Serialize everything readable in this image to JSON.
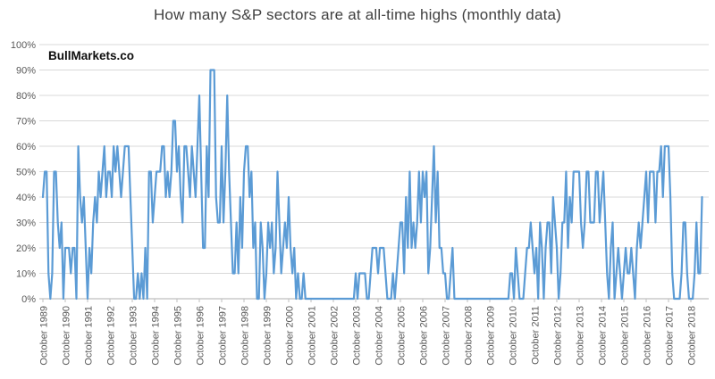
{
  "title": "How many S&P sectors are at all-time highs (monthly data)",
  "watermark": "BullMarkets.co",
  "chart_data": {
    "type": "line",
    "title": "How many S&P sectors are at all-time highs (monthly data)",
    "xlabel": "",
    "ylabel": "",
    "y_unit": "%",
    "ylim": [
      0,
      100
    ],
    "y_tick_step": 10,
    "y_tick_labels": [
      "0%",
      "10%",
      "20%",
      "30%",
      "40%",
      "50%",
      "60%",
      "70%",
      "80%",
      "90%",
      "100%"
    ],
    "x_tick_labels": [
      "October 1989",
      "October 1990",
      "October 1991",
      "October 1992",
      "October 1993",
      "October 1994",
      "October 1995",
      "October 1996",
      "October 1997",
      "October 1998",
      "October 1999",
      "October 2000",
      "October 2001",
      "October 2002",
      "October 2003",
      "October 2004",
      "October 2005",
      "October 2006",
      "October 2007",
      "October 2008",
      "October 2009",
      "October 2010",
      "October 2011",
      "October 2012",
      "October 2013",
      "October 2014",
      "October 2015",
      "October 2016",
      "October 2017",
      "October 2018"
    ],
    "x_label_interval_months": 12,
    "frequency": "monthly",
    "series_start": "October 1989",
    "grid": true,
    "legend_position": "none",
    "line_color": "#5B9BD5",
    "grid_color": "#D9D9D9",
    "axis_color": "#BFBFBF",
    "tick_text_color": "#595959",
    "title_color": "#404040",
    "values": [
      40,
      50,
      50,
      10,
      0,
      10,
      50,
      50,
      30,
      20,
      30,
      0,
      20,
      20,
      20,
      10,
      20,
      20,
      0,
      60,
      40,
      30,
      40,
      20,
      0,
      20,
      10,
      30,
      40,
      30,
      50,
      40,
      50,
      60,
      40,
      50,
      50,
      40,
      60,
      50,
      60,
      50,
      40,
      50,
      60,
      60,
      60,
      40,
      20,
      0,
      0,
      10,
      0,
      10,
      0,
      20,
      0,
      50,
      50,
      30,
      40,
      50,
      50,
      50,
      60,
      60,
      40,
      50,
      40,
      50,
      70,
      70,
      50,
      60,
      40,
      30,
      60,
      60,
      50,
      40,
      60,
      50,
      40,
      60,
      80,
      50,
      20,
      20,
      60,
      40,
      90,
      90,
      90,
      40,
      30,
      30,
      60,
      30,
      50,
      80,
      50,
      30,
      10,
      10,
      30,
      10,
      40,
      20,
      50,
      60,
      60,
      40,
      50,
      20,
      30,
      0,
      0,
      30,
      20,
      0,
      10,
      30,
      20,
      30,
      10,
      20,
      50,
      30,
      10,
      20,
      30,
      20,
      40,
      20,
      10,
      20,
      0,
      10,
      0,
      0,
      10,
      0,
      0,
      0,
      0,
      0,
      0,
      0,
      0,
      0,
      0,
      0,
      0,
      0,
      0,
      0,
      0,
      0,
      0,
      0,
      0,
      0,
      0,
      0,
      0,
      0,
      0,
      0,
      10,
      0,
      10,
      10,
      10,
      10,
      0,
      0,
      10,
      20,
      20,
      20,
      10,
      20,
      20,
      20,
      10,
      0,
      0,
      0,
      10,
      0,
      10,
      20,
      30,
      30,
      10,
      40,
      20,
      50,
      20,
      30,
      20,
      30,
      50,
      30,
      50,
      40,
      50,
      10,
      20,
      40,
      60,
      30,
      50,
      20,
      20,
      10,
      10,
      0,
      0,
      10,
      20,
      0,
      0,
      0,
      0,
      0,
      0,
      0,
      0,
      0,
      0,
      0,
      0,
      0,
      0,
      0,
      0,
      0,
      0,
      0,
      0,
      0,
      0,
      0,
      0,
      0,
      0,
      0,
      0,
      0,
      0,
      10,
      10,
      0,
      20,
      10,
      0,
      0,
      0,
      10,
      20,
      20,
      30,
      20,
      10,
      20,
      0,
      30,
      20,
      0,
      20,
      30,
      30,
      10,
      40,
      30,
      20,
      0,
      10,
      30,
      30,
      50,
      20,
      40,
      30,
      50,
      50,
      50,
      50,
      30,
      20,
      30,
      50,
      50,
      30,
      30,
      30,
      50,
      50,
      30,
      40,
      50,
      30,
      10,
      0,
      20,
      30,
      0,
      10,
      20,
      10,
      0,
      10,
      20,
      10,
      10,
      20,
      10,
      0,
      20,
      30,
      20,
      30,
      40,
      50,
      30,
      50,
      50,
      50,
      30,
      50,
      50,
      60,
      40,
      60,
      60,
      60,
      40,
      10,
      0,
      0,
      0,
      0,
      10,
      30,
      30,
      10,
      0,
      0,
      0,
      10,
      30,
      10,
      10,
      40
    ]
  }
}
